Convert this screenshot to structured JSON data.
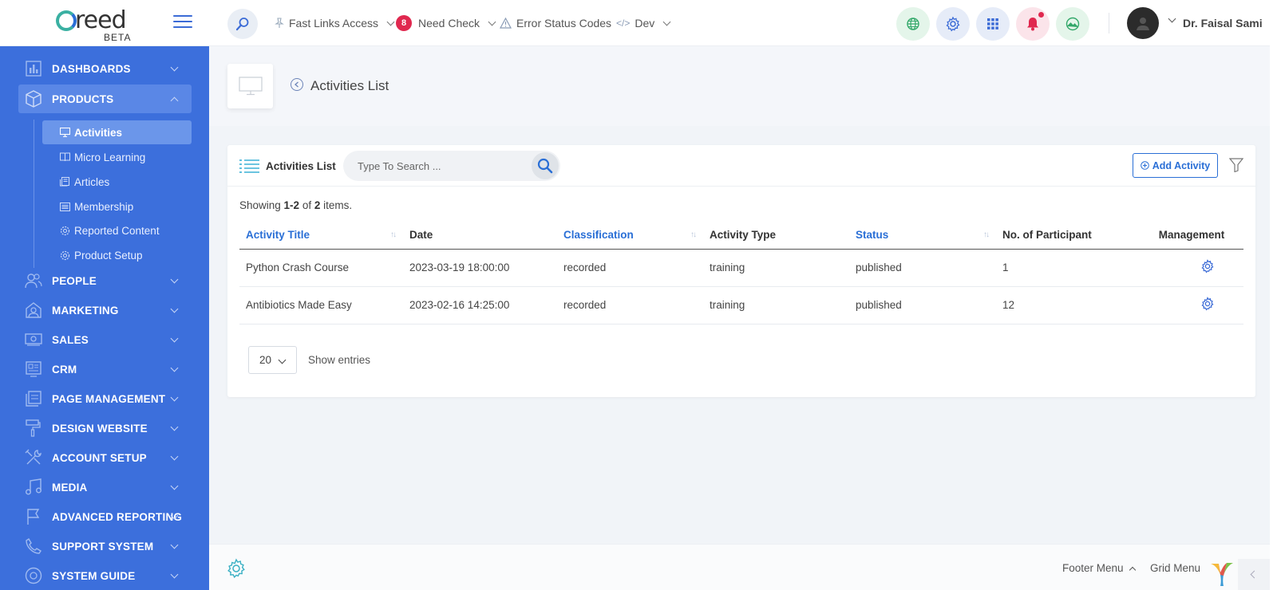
{
  "header": {
    "logo_word": "reed",
    "logo_sub": "BETA",
    "nav": [
      {
        "label": "Fast Links Access"
      },
      {
        "label": "Need Check",
        "badge": "8"
      },
      {
        "label": "Error Status Codes"
      },
      {
        "label": "Dev"
      }
    ],
    "user_name": "Dr. Faisal Sami",
    "icons": [
      "globe-icon",
      "gear-icon",
      "apps-grid-icon",
      "bell-icon",
      "landscape-icon"
    ]
  },
  "sidebar": {
    "items": [
      {
        "label": "DASHBOARDS",
        "icon": "dashboard-icon"
      },
      {
        "label": "PRODUCTS",
        "icon": "box-icon",
        "open": true
      },
      {
        "label": "PEOPLE",
        "icon": "people-icon"
      },
      {
        "label": "MARKETING",
        "icon": "marketing-icon"
      },
      {
        "label": "SALES",
        "icon": "money-icon"
      },
      {
        "label": "CRM",
        "icon": "crm-icon"
      },
      {
        "label": "PAGE MANAGEMENT",
        "icon": "pages-icon"
      },
      {
        "label": "DESIGN WEBSITE",
        "icon": "paint-roller-icon"
      },
      {
        "label": "ACCOUNT SETUP",
        "icon": "tools-icon"
      },
      {
        "label": "MEDIA",
        "icon": "music-icon"
      },
      {
        "label": "ADVANCED REPORTING",
        "icon": "flag-icon"
      },
      {
        "label": "SUPPORT SYSTEM",
        "icon": "phone-icon"
      },
      {
        "label": "SYSTEM GUIDE",
        "icon": "help-icon"
      }
    ],
    "sub_items": [
      {
        "label": "Activities",
        "icon": "monitor-icon",
        "active": true
      },
      {
        "label": "Micro Learning",
        "icon": "book-icon"
      },
      {
        "label": "Articles",
        "icon": "article-icon"
      },
      {
        "label": "Membership",
        "icon": "list-icon"
      },
      {
        "label": "Reported Content",
        "icon": "gear-icon"
      },
      {
        "label": "Product Setup",
        "icon": "gear-icon"
      }
    ]
  },
  "page": {
    "title": "Activities List"
  },
  "card": {
    "title": "Activities List",
    "search_placeholder": "Type To Search ...",
    "add_label": "Add Activity",
    "showing_prefix": "Showing ",
    "showing_range": "1-2",
    "showing_of": " of ",
    "showing_total": "2",
    "showing_suffix": " items.",
    "columns": [
      "Activity Title",
      "Date",
      "Classification",
      "Activity Type",
      "Status",
      "No. of Participant",
      "Management"
    ],
    "rows": [
      {
        "title": "Python Crash Course",
        "date": "2023-03-19 18:00:00",
        "classification": "recorded",
        "type": "training",
        "status": "published",
        "participants": "1"
      },
      {
        "title": "Antibiotics Made Easy",
        "date": "2023-02-16 14:25:00",
        "classification": "recorded",
        "type": "training",
        "status": "published",
        "participants": "12"
      }
    ],
    "per_page": "20",
    "show_entries": "Show entries"
  },
  "footer": {
    "footer_menu": "Footer Menu",
    "grid_menu": "Grid Menu"
  },
  "colors": {
    "sidebar": "#3c6fdc",
    "accent": "#2a6fd6",
    "badge": "#e0284f"
  }
}
